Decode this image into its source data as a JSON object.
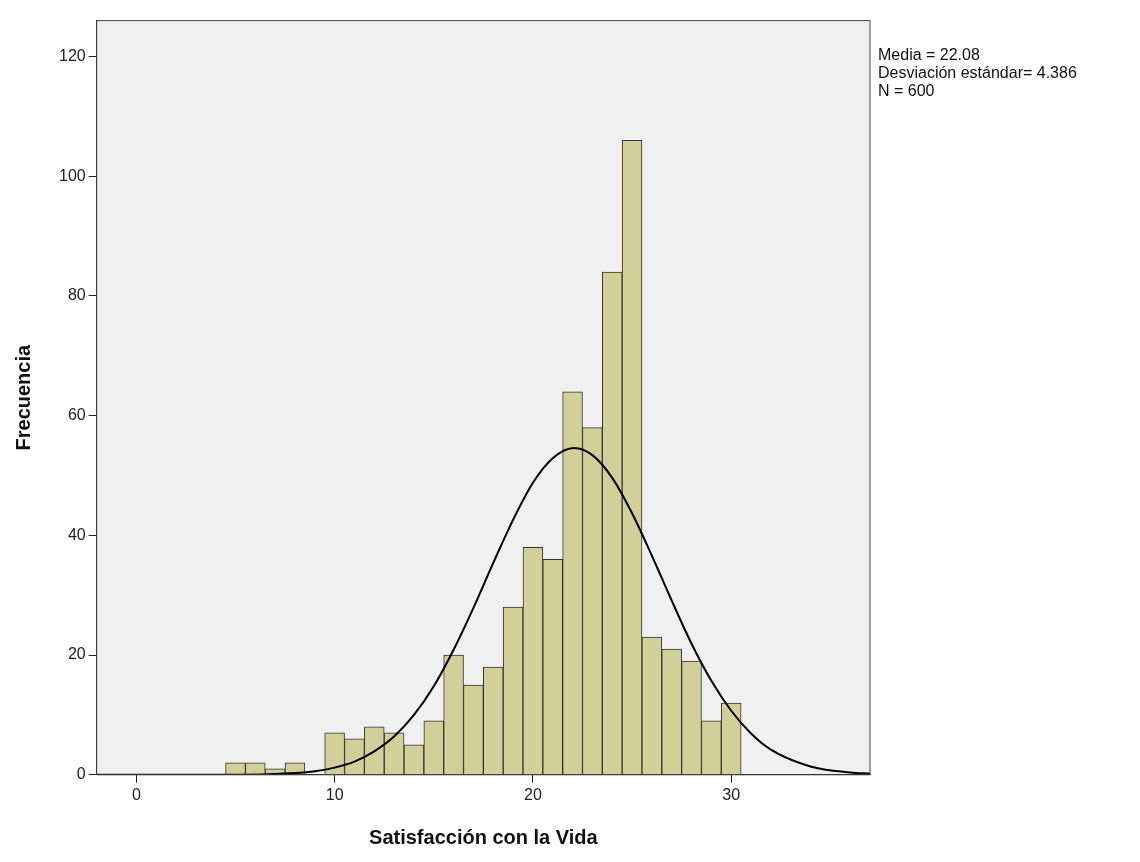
{
  "chart_data": {
    "type": "histogram",
    "xlabel": "Satisfacción con la Vida",
    "ylabel": "Frecuencia",
    "annotations": [
      "Media = 22.08",
      "Desviación estándar= 4.386",
      "N = 600"
    ],
    "bins": [
      4.5,
      5.5,
      6.5,
      7.5,
      8.5,
      9.5,
      10.5,
      11.5,
      12.5,
      13.5,
      14.5,
      15.5,
      16.5,
      17.5,
      18.5,
      19.5,
      20.5,
      21.5,
      22.5,
      23.5,
      24.5,
      25.5,
      26.5,
      27.5,
      28.5,
      29.5,
      30.5
    ],
    "series": [
      {
        "color": "#d3cf98",
        "values": [
          2,
          2,
          1,
          2,
          0,
          7,
          6,
          8,
          7,
          5,
          9,
          20,
          15,
          18,
          28,
          38,
          36,
          64,
          58,
          84,
          106,
          23,
          21,
          19,
          9,
          12
        ]
      },
      {
        "type": "line",
        "color": "#000000",
        "x": [
          -2,
          0,
          5,
          8,
          9,
          10,
          11,
          12,
          13,
          14,
          15,
          16,
          17,
          18,
          19,
          20,
          21,
          22.08,
          23,
          24,
          25,
          26,
          27,
          28,
          29,
          30,
          31,
          32,
          34,
          36,
          37
        ],
        "values": [
          0,
          0,
          0,
          0.3,
          0.6,
          1.2,
          2.2,
          3.9,
          6.4,
          10,
          14.8,
          20.9,
          27.9,
          35.4,
          42.6,
          48.8,
          52.9,
          54.6,
          53.4,
          49.6,
          43.7,
          36.6,
          29.1,
          21.9,
          15.7,
          10.7,
          6.9,
          4.2,
          1.4,
          0.4,
          0.2
        ]
      }
    ],
    "xlim": [
      -2,
      37
    ],
    "xticks": [
      0,
      10,
      20,
      30
    ],
    "ylim": [
      0,
      126
    ],
    "yticks": [
      0,
      20,
      40,
      60,
      80,
      100,
      120
    ],
    "grid": false,
    "legend": false,
    "marker": "none"
  }
}
